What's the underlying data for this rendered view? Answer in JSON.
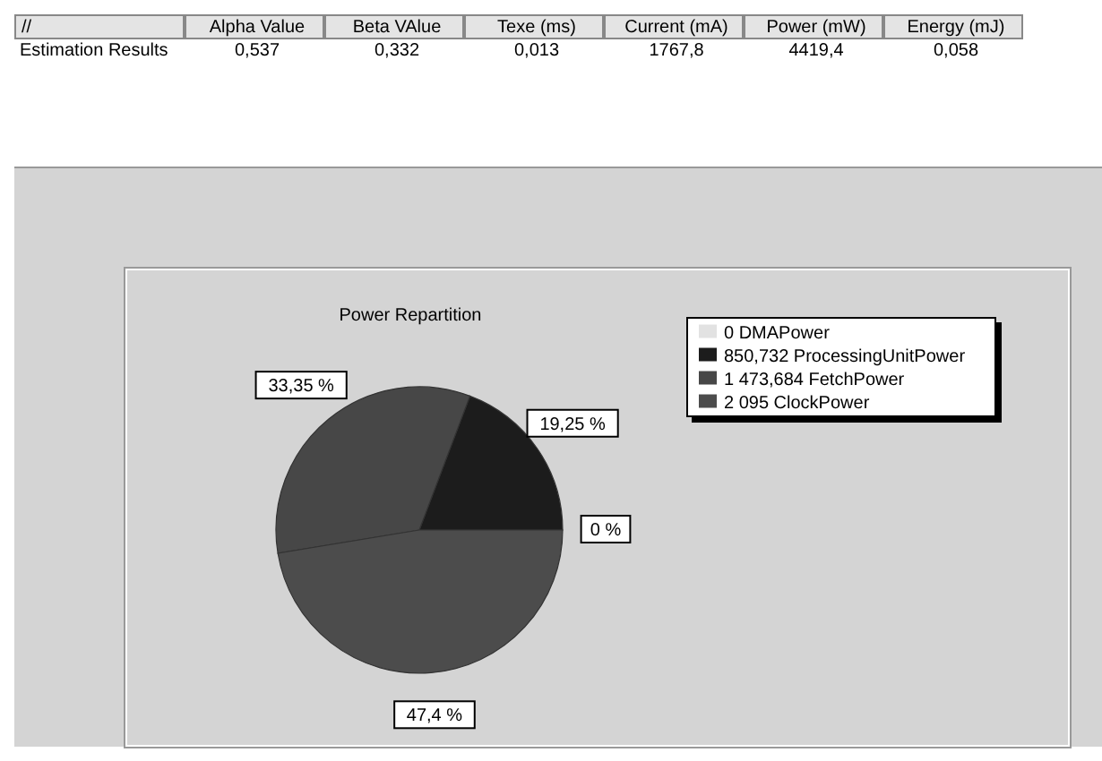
{
  "chart_data": {
    "type": "pie",
    "title": "Power Repartition",
    "categories": [
      "0 DMAPower",
      "850,732 ProcessingUnitPower",
      "1 473,684 FetchPower",
      "2 095 ClockPower"
    ],
    "values": [
      0,
      19.25,
      33.35,
      47.4
    ],
    "colors": [
      "#e2e2e2",
      "#1c1c1c",
      "#474747",
      "#4c4c4c"
    ],
    "value_labels": [
      "0 %",
      "19,25 %",
      "33,35 %",
      "47,4 %"
    ],
    "legend": "top right",
    "annotations": [
      "//",
      "Alpha Value",
      "Beta VAlue",
      "Texe (ms)",
      "Current (mA)",
      "Power (mW)",
      "Energy (mJ)",
      "Estimation Results",
      "0,537",
      "0,332",
      "0,013",
      "1767,8",
      "4419,4",
      "0,058"
    ]
  }
}
